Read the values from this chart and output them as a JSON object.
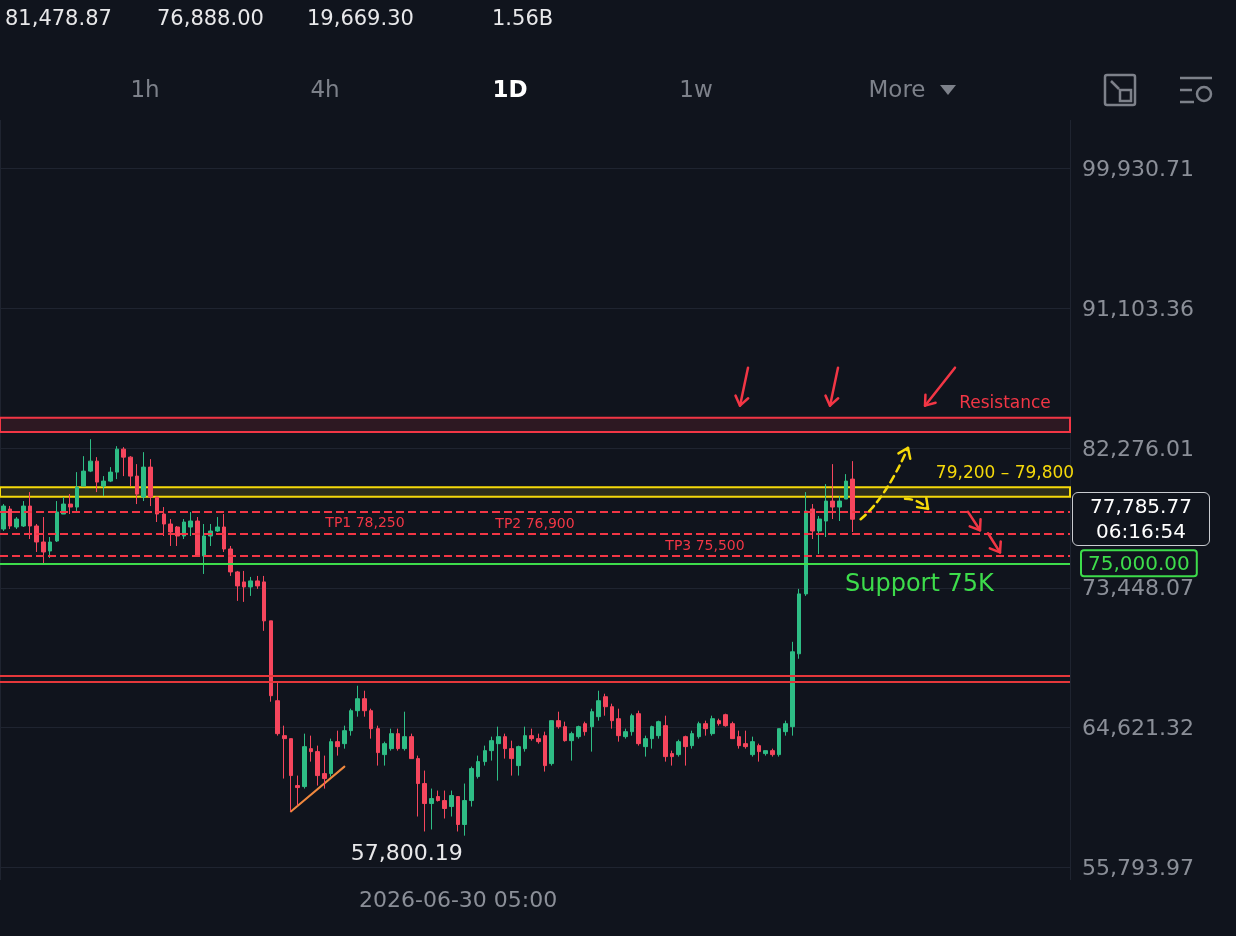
{
  "chart_data": {
    "type": "candlestick",
    "categories": [
      null,
      null,
      null,
      null,
      null,
      null,
      null,
      null,
      null,
      null,
      null,
      null,
      null,
      null,
      null,
      null,
      null,
      null,
      null,
      null,
      null,
      null,
      null,
      null,
      null,
      null,
      null,
      null,
      null,
      null,
      null,
      null,
      null,
      null,
      null,
      null,
      null,
      null,
      null,
      null,
      null,
      null,
      null,
      null,
      null,
      null,
      null,
      null,
      null,
      null,
      null,
      null,
      null,
      null,
      null,
      null,
      null,
      null,
      null,
      null,
      null,
      null,
      null,
      null,
      null,
      null,
      null,
      null,
      "2026-06-30 05:00",
      null,
      null,
      null,
      null,
      null,
      null,
      null,
      null,
      null,
      null,
      null,
      null,
      null,
      null,
      null,
      null,
      null,
      null,
      null,
      null,
      null,
      null,
      null,
      null,
      null,
      null,
      null,
      null,
      null,
      null,
      null,
      null,
      null,
      null,
      null,
      null,
      null,
      null,
      null,
      null,
      null,
      null,
      null,
      null,
      null,
      null,
      null,
      null,
      null,
      null,
      null,
      null,
      null,
      null,
      null,
      null,
      null,
      null,
      null,
      null,
      null,
      null,
      null,
      null,
      null,
      null,
      null,
      null,
      null,
      null,
      null,
      null,
      null,
      null,
      null,
      null,
      null,
      null,
      null,
      null,
      null,
      null,
      null,
      null,
      null,
      null,
      null,
      null,
      null,
      null,
      null
    ],
    "ohlc": [
      [
        77167,
        78744,
        77041,
        78618
      ],
      [
        78429,
        78618,
        77167,
        77357
      ],
      [
        77294,
        77924,
        77167,
        77798
      ],
      [
        77357,
        78933,
        77294,
        78618
      ],
      [
        78618,
        79500,
        76537,
        77357
      ],
      [
        77357,
        77483,
        75717,
        76348
      ],
      [
        76348,
        77924,
        74961,
        75717
      ],
      [
        75780,
        76663,
        75339,
        76348
      ],
      [
        76411,
        78933,
        76348,
        78240
      ],
      [
        78113,
        79185,
        78113,
        78744
      ],
      [
        78744,
        79374,
        78113,
        78555
      ],
      [
        78555,
        80761,
        78240,
        79816
      ],
      [
        79879,
        81770,
        79879,
        80824
      ],
      [
        80824,
        82842,
        80761,
        81455
      ],
      [
        81455,
        81707,
        79500,
        80131
      ],
      [
        79879,
        80509,
        79248,
        80194
      ],
      [
        80194,
        81077,
        80131,
        80761
      ],
      [
        80761,
        82401,
        80320,
        82212
      ],
      [
        82212,
        82338,
        80509,
        81707
      ],
      [
        81707,
        81770,
        79879,
        80509
      ],
      [
        80509,
        81266,
        78744,
        79374
      ],
      [
        79185,
        82022,
        78933,
        81077
      ],
      [
        81077,
        81581,
        78618,
        79185
      ],
      [
        79185,
        79185,
        77609,
        78113
      ],
      [
        78113,
        78555,
        76726,
        77483
      ],
      [
        77483,
        77798,
        76096,
        76978
      ],
      [
        77294,
        77357,
        76096,
        76726
      ],
      [
        76726,
        77798,
        76537,
        77609
      ],
      [
        77294,
        78240,
        76726,
        77672
      ],
      [
        77672,
        77924,
        75402,
        75465
      ],
      [
        75465,
        77483,
        74330,
        76726
      ],
      [
        76726,
        77483,
        76096,
        77041
      ],
      [
        77041,
        77924,
        76978,
        77294
      ],
      [
        77294,
        78113,
        75717,
        75906
      ],
      [
        75906,
        76096,
        74204,
        74457
      ],
      [
        74457,
        74520,
        72628,
        73574
      ],
      [
        73826,
        74520,
        72565,
        73511
      ],
      [
        73511,
        74141,
        72943,
        73889
      ],
      [
        73889,
        74204,
        73385,
        73574
      ],
      [
        73826,
        74204,
        70736,
        71367
      ],
      [
        71367,
        71367,
        66260,
        66639
      ],
      [
        66324,
        67522,
        64117,
        64243
      ],
      [
        64117,
        64748,
        61406,
        63928
      ],
      [
        63928,
        63928,
        59325,
        61595
      ],
      [
        60964,
        61595,
        59703,
        60838
      ],
      [
        60901,
        64243,
        60775,
        63423
      ],
      [
        63297,
        64117,
        62477,
        63108
      ],
      [
        63108,
        63486,
        60964,
        61595
      ],
      [
        61721,
        62856,
        60775,
        61406
      ],
      [
        61721,
        63928,
        61532,
        63738
      ],
      [
        63738,
        64432,
        62856,
        63423
      ],
      [
        63612,
        64748,
        63297,
        64432
      ],
      [
        64432,
        65819,
        64117,
        65693
      ],
      [
        65693,
        67269,
        65315,
        66450
      ],
      [
        66450,
        66954,
        65315,
        65693
      ],
      [
        65693,
        65819,
        63928,
        64558
      ],
      [
        64558,
        64748,
        62225,
        63045
      ],
      [
        62919,
        63738,
        62225,
        63612
      ],
      [
        63297,
        64558,
        63171,
        64243
      ],
      [
        64243,
        64558,
        63171,
        63297
      ],
      [
        63297,
        65630,
        63171,
        64054
      ],
      [
        64054,
        64243,
        62666,
        62666
      ],
      [
        62666,
        62856,
        59010,
        61091
      ],
      [
        61091,
        61910,
        58065,
        59829
      ],
      [
        59829,
        60775,
        58191,
        60144
      ],
      [
        60270,
        60648,
        59955,
        60018
      ],
      [
        60018,
        60648,
        58884,
        59514
      ],
      [
        59640,
        60648,
        59010,
        60333
      ],
      [
        60270,
        60270,
        58065,
        58506
      ],
      [
        58506,
        61091,
        57800.19,
        60018
      ],
      [
        60018,
        62162,
        59640,
        62036
      ],
      [
        61532,
        62856,
        61406,
        62477
      ],
      [
        62477,
        63486,
        62225,
        63171
      ],
      [
        63171,
        64054,
        62540,
        63801
      ],
      [
        63612,
        64684,
        61280,
        64054
      ],
      [
        64054,
        64243,
        62666,
        63297
      ],
      [
        63297,
        63801,
        61595,
        62666
      ],
      [
        62225,
        63486,
        61595,
        63423
      ],
      [
        63297,
        64684,
        63108,
        64117
      ],
      [
        64117,
        64558,
        63801,
        63928
      ],
      [
        63928,
        64243,
        63612,
        63738
      ],
      [
        64117,
        64369,
        61847,
        62225
      ],
      [
        62351,
        65063,
        62225,
        65063
      ],
      [
        65063,
        65630,
        64558,
        64684
      ],
      [
        64684,
        65000,
        63738,
        63801
      ],
      [
        63801,
        64369,
        62540,
        64243
      ],
      [
        64054,
        64748,
        63928,
        64684
      ],
      [
        64873,
        65000,
        64117,
        64369
      ],
      [
        64684,
        65819,
        63108,
        65630
      ],
      [
        65315,
        66954,
        65063,
        66324
      ],
      [
        66576,
        66765,
        65378,
        65945
      ],
      [
        65945,
        66135,
        64558,
        65063
      ],
      [
        65189,
        65819,
        63738,
        64117
      ],
      [
        64054,
        64558,
        63928,
        64369
      ],
      [
        64369,
        65504,
        64117,
        65378
      ],
      [
        65504,
        65693,
        63486,
        63612
      ],
      [
        63423,
        64117,
        62793,
        63928
      ],
      [
        63928,
        64748,
        63297,
        64684
      ],
      [
        64117,
        65063,
        63928,
        65000
      ],
      [
        64748,
        65378,
        62477,
        62793
      ],
      [
        62982,
        63171,
        62225,
        62793
      ],
      [
        62919,
        63864,
        62793,
        63738
      ],
      [
        64054,
        64117,
        62225,
        63423
      ],
      [
        63486,
        64432,
        63297,
        64243
      ],
      [
        64054,
        65000,
        63928,
        64873
      ],
      [
        64873,
        65063,
        64117,
        64558
      ],
      [
        64243,
        65378,
        64117,
        65189
      ],
      [
        65063,
        65189,
        64748,
        64873
      ],
      [
        65441,
        65504,
        64684,
        64748
      ],
      [
        64873,
        65000,
        63928,
        63928
      ],
      [
        64054,
        64432,
        63297,
        63486
      ],
      [
        63612,
        64432,
        63297,
        63423
      ],
      [
        62919,
        64054,
        62793,
        63738
      ],
      [
        63486,
        63612,
        62477,
        63108
      ],
      [
        62982,
        63171,
        62856,
        63171
      ],
      [
        63171,
        63297,
        62793,
        62919
      ],
      [
        62919,
        64558,
        62793,
        64558
      ],
      [
        64369,
        65063,
        64117,
        64873
      ],
      [
        64684,
        70043,
        64117,
        69413
      ],
      [
        69287,
        73385,
        68972,
        73070
      ],
      [
        73070,
        79500,
        72943,
        78303
      ],
      [
        78429,
        78744,
        76537,
        77041
      ],
      [
        77041,
        77987,
        75591,
        77798
      ],
      [
        77672,
        80005,
        76663,
        78933
      ],
      [
        78933,
        81266,
        77798,
        78555
      ],
      [
        78555,
        79248,
        77672,
        78933
      ],
      [
        79059,
        80635,
        79059,
        80194
      ],
      [
        80320,
        81455,
        76978,
        77785.77
      ],
      null,
      null,
      null,
      null,
      null,
      null,
      null,
      null,
      null,
      null,
      null,
      null,
      null,
      null,
      null,
      null,
      null,
      null,
      null,
      null,
      null,
      null,
      null,
      null,
      null,
      null,
      null,
      null,
      null,
      null,
      null,
      null
    ],
    "series": [
      {
        "type": "line",
        "color": "#f0883e",
        "values": [
          null,
          null,
          null,
          null,
          null,
          null,
          null,
          null,
          null,
          null,
          null,
          null,
          null,
          null,
          null,
          null,
          null,
          null,
          null,
          null,
          null,
          null,
          null,
          null,
          null,
          null,
          null,
          null,
          null,
          null,
          null,
          null,
          null,
          null,
          null,
          null,
          null,
          null,
          null,
          null,
          null,
          null,
          null,
          59330,
          null,
          null,
          null,
          null,
          null,
          null,
          null,
          62160,
          null,
          null,
          null,
          null,
          null,
          null,
          null,
          null,
          null,
          null,
          null,
          null,
          null,
          null,
          null,
          null,
          null,
          null,
          null,
          null,
          null,
          null,
          null,
          null,
          null,
          null,
          null,
          null,
          null,
          null,
          null,
          null,
          null,
          null,
          null,
          null,
          null,
          null,
          null,
          null,
          null,
          null,
          null,
          null,
          null,
          null,
          null,
          null,
          null,
          null,
          null,
          null,
          null,
          null,
          null,
          null,
          null,
          null,
          null,
          null,
          null,
          null,
          null,
          null,
          null,
          null,
          null,
          null,
          null,
          null,
          null,
          null,
          null,
          null,
          null,
          null,
          null,
          null,
          null,
          null,
          null,
          null,
          null,
          null,
          null,
          null,
          null,
          null,
          null,
          null,
          null,
          null,
          null,
          null,
          null,
          null,
          null,
          null,
          null,
          null,
          null,
          null,
          null,
          null,
          null,
          null,
          null,
          null
        ]
      }
    ],
    "ylim": [
      55000,
      103000
    ],
    "yticks": [
      {
        "value": 55793.97,
        "label": "55,793.97"
      },
      {
        "value": 64621.32,
        "label": "64,621.32"
      },
      {
        "value": 73448.07,
        "label": "73,448.07"
      },
      {
        "value": 82276.01,
        "label": "82,276.01"
      },
      {
        "value": 91103.36,
        "label": "91,103.36"
      },
      {
        "value": 99930.71,
        "label": "99,930.71"
      }
    ],
    "grid": true,
    "ref_lines": [
      {
        "axis": "y",
        "value": 78250,
        "label": "TP1 78,250",
        "color": "#f23645",
        "line_style": "dashed"
      },
      {
        "axis": "y",
        "value": 76900,
        "label": "TP2 76,900",
        "color": "#f23645",
        "line_style": "dashed"
      },
      {
        "axis": "y",
        "value": 75500,
        "label": "TP3 75,500",
        "color": "#f23645",
        "line_style": "dashed"
      },
      {
        "axis": "y",
        "value": 75000,
        "label": "75,000.00",
        "color": "#3ddc4b",
        "line_style": "solid"
      },
      {
        "axis": "y",
        "value": 67900,
        "label": null,
        "color": "#e5383b",
        "line_style": "solid"
      },
      {
        "axis": "y",
        "value": 67520,
        "label": null,
        "color": "#e5383b",
        "line_style": "solid"
      }
    ],
    "bands": [
      {
        "axis": "y",
        "from": 83300,
        "to": 84200,
        "label": "Resistance",
        "color": "#f23645"
      },
      {
        "axis": "y",
        "from": 79200,
        "to": 79800,
        "label": "79,200 – 79,800",
        "color": "#f5d90a"
      }
    ],
    "annotations": [
      "81,478.87",
      "76,888.00",
      "19,669.30",
      "1.56B",
      "1h",
      "4h",
      "1D",
      "1w",
      "More",
      {
        "text": "Support 75K",
        "y": 75000
      },
      "57,800.19",
      "77,785.77",
      "06:16:54"
    ]
  }
}
